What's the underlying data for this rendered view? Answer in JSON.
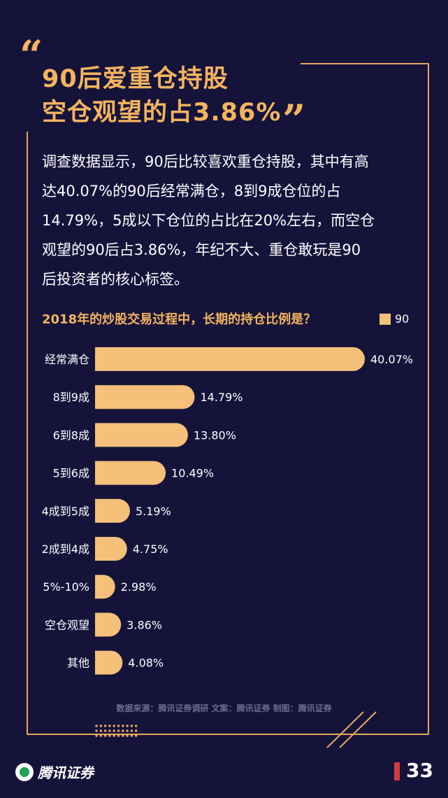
{
  "title": {
    "line1": "90后爱重仓持股",
    "line2": "空仓观望的占3.86%"
  },
  "body_lines": [
    "调查数据显示，90后比较喜欢重仓持股，其中有高",
    "达40.07%的90后经常满仓，8到9成仓位的占",
    "14.79%，5成以下仓位的占比在20%左右，而空仓",
    "观望的90后占3.86%，年纪不大、重仓敢玩是90",
    "后投资者的核心标签。"
  ],
  "source_text": "数据来源：腾讯证券调研  文案：腾讯证券  制图：腾讯证券",
  "brand": "腾讯证券",
  "page_number": "33",
  "colors": {
    "background": "#15133a",
    "accent": "#f4b45f",
    "bar": "#f4c07a",
    "page_marker": "#d33b3b"
  },
  "chart_data": {
    "type": "bar",
    "orientation": "horizontal",
    "title": "2018年的炒股交易过程中，长期的持仓比例是？",
    "legend_position": "top-right",
    "series": [
      {
        "name": "90",
        "values": [
          40.07,
          14.79,
          13.8,
          10.49,
          5.19,
          4.75,
          2.98,
          3.86,
          4.08
        ],
        "labels": [
          "40.07%",
          "14.79%",
          "13.80%",
          "10.49%",
          "5.19%",
          "4.75%",
          "2.98%",
          "3.86%",
          "4.08%"
        ]
      }
    ],
    "categories": [
      "经常满仓",
      "8到9成",
      "6到8成",
      "5到6成",
      "4成到5成",
      "2成到4成",
      "5%-10%",
      "空仓观望",
      "其他"
    ],
    "unit": "%",
    "grid": false
  }
}
